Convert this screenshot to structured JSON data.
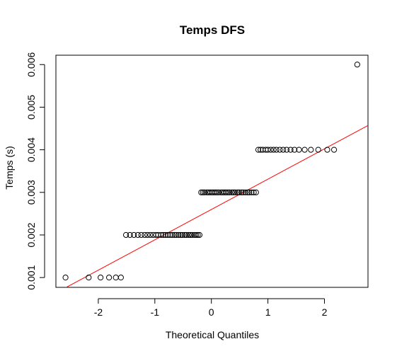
{
  "chart_data": {
    "type": "scatter",
    "title": "Temps DFS",
    "xlabel": "Theoretical Quantiles",
    "ylabel": "Temps (s)",
    "xlim": [
      -2.75,
      2.77
    ],
    "ylim": [
      0.00077,
      0.00622
    ],
    "xticks": [
      -2,
      -1,
      0,
      1,
      2
    ],
    "yticks": [
      0.001,
      0.002,
      0.003,
      0.004,
      0.005,
      0.006
    ],
    "xtick_labels": [
      "-2",
      "-1",
      "0",
      "1",
      "2"
    ],
    "ytick_labels": [
      "0.001",
      "0.002",
      "0.003",
      "0.004",
      "0.005",
      "0.006"
    ],
    "grid": false,
    "point_color": "#000000",
    "line_color": "#ff0000",
    "qq_line": {
      "x": [
        -2.75,
        2.77
      ],
      "y": [
        0.00064,
        0.00457
      ]
    },
    "series": [
      {
        "values_x": [
          -2.58,
          -2.17,
          -1.96,
          -1.81,
          -1.69,
          -1.6,
          -1.51,
          -1.44,
          -1.37,
          -1.3,
          -1.24,
          -1.18,
          -1.13,
          -1.08,
          -1.03,
          -0.98,
          -0.94,
          -0.89,
          -0.85,
          -0.81,
          -0.77,
          -0.73,
          -0.69,
          -0.65,
          -0.62,
          -0.58,
          -0.54,
          -0.51,
          -0.47,
          -0.44,
          -0.4,
          -0.37,
          -0.34,
          -0.3,
          -0.27,
          -0.24,
          -0.21,
          -0.18,
          -0.15,
          -0.12,
          -0.08,
          -0.05,
          -0.02,
          0.01,
          0.04,
          0.07,
          0.1,
          0.13,
          0.17,
          0.2,
          0.23,
          0.26,
          0.29,
          0.32,
          0.36,
          0.39,
          0.42,
          0.46,
          0.49,
          0.53,
          0.56,
          0.6,
          0.64,
          0.67,
          0.71,
          0.75,
          0.79,
          0.83,
          0.87,
          0.91,
          0.96,
          1.0,
          1.05,
          1.1,
          1.15,
          1.21,
          1.27,
          1.33,
          1.4,
          1.47,
          1.55,
          1.65,
          1.76,
          1.89,
          2.05,
          2.17,
          2.58
        ],
        "values_y": [
          0.001,
          0.001,
          0.001,
          0.001,
          0.001,
          0.001,
          0.002,
          0.002,
          0.002,
          0.002,
          0.002,
          0.002,
          0.002,
          0.002,
          0.002,
          0.002,
          0.002,
          0.002,
          0.002,
          0.002,
          0.002,
          0.002,
          0.002,
          0.002,
          0.002,
          0.002,
          0.002,
          0.002,
          0.002,
          0.002,
          0.002,
          0.002,
          0.002,
          0.002,
          0.002,
          0.002,
          0.002,
          0.003,
          0.003,
          0.003,
          0.003,
          0.003,
          0.003,
          0.003,
          0.003,
          0.003,
          0.003,
          0.003,
          0.003,
          0.003,
          0.003,
          0.003,
          0.003,
          0.003,
          0.003,
          0.003,
          0.003,
          0.003,
          0.003,
          0.003,
          0.003,
          0.003,
          0.003,
          0.003,
          0.003,
          0.003,
          0.003,
          0.004,
          0.004,
          0.004,
          0.004,
          0.004,
          0.004,
          0.004,
          0.004,
          0.004,
          0.004,
          0.004,
          0.004,
          0.004,
          0.004,
          0.004,
          0.004,
          0.004,
          0.004,
          0.004,
          0.006
        ]
      }
    ]
  }
}
